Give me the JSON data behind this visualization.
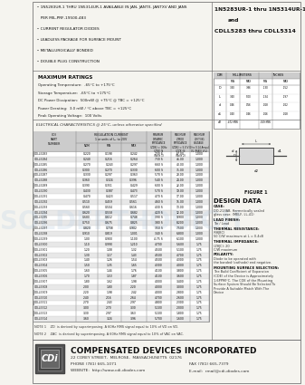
{
  "title_left_lines": [
    "  • 1N5283UR-1 THRU 1N5314UR-1 AVAILABLE IN JAN, JANTX, JANTXV AND JANS",
    "     PER MIL-PRF-19500-483",
    "  • CURRENT REGULATOR DIODES",
    "  • LEADLESS PACKAGE FOR SURFACE MOUNT",
    "  • METALLURGICALLY BONDED",
    "  • DOUBLE PLUG CONSTRUCTION"
  ],
  "title_right_line1": "1N5283UR-1 thru 1N5314UR-1",
  "title_right_line2": "and",
  "title_right_line3": "CDLL5283 thru CDLL5314",
  "max_ratings_title": "MAXIMUM RATINGS",
  "max_ratings": [
    "Operating Temperature:  -65°C to +175°C",
    "Storage Temperature:  -65°C to +175°C",
    "DC Power Dissipation:  500mW @ +75°C @ TBC = +125°C",
    "Power Derating:  3.0 mW / °C above TBC = +125°C",
    "Peak Operating Voltage:  100 Volts"
  ],
  "elec_char_title": "ELECTRICAL CHARACTERISTICS @ 25°C, unless otherwise specified",
  "table_data": [
    [
      "CDLL5283",
      "0.220",
      "0.198",
      "0.242",
      "730 S",
      "67.00",
      "1.000"
    ],
    [
      "CDLL5284",
      "0.240",
      "0.216",
      "0.264",
      "730 S",
      "46.00",
      "1.000"
    ],
    [
      "CDLL5285",
      "0.270",
      "0.243",
      "0.297",
      "660 S",
      "40.00",
      "1.000"
    ],
    [
      "CDLL5286",
      "0.300",
      "0.270",
      "0.330",
      "600 S",
      "35.00",
      "1.000"
    ],
    [
      "CDLL5287",
      "0.330",
      "0.297",
      "0.363",
      "570 S",
      "28.00",
      "1.000"
    ],
    [
      "CDLL5288",
      "0.360",
      "0.324",
      "0.396",
      "540 S",
      "24.00",
      "1.000"
    ],
    [
      "CDLL5289",
      "0.390",
      "0.351",
      "0.429",
      "600 S",
      "22.00",
      "1.000"
    ],
    [
      "CDLL5290",
      "0.430",
      "0.387",
      "0.473",
      "570 S",
      "19.00",
      "1.000"
    ],
    [
      "CDLL5291",
      "0.470",
      "0.423",
      "0.517",
      "470 S",
      "17.00",
      "1.000"
    ],
    [
      "CDLL5292",
      "0.510",
      "0.459",
      "0.561",
      "460 S",
      "15.00",
      "1.000"
    ],
    [
      "CDLL5293",
      "0.560",
      "0.504",
      "0.616",
      "430 S",
      "13.00",
      "1.000"
    ],
    [
      "CDLL5294",
      "0.620",
      "0.558",
      "0.682",
      "420 S",
      "12.00",
      "1.000"
    ],
    [
      "CDLL5295",
      "0.680",
      "0.612",
      "0.748",
      "390 S",
      "9.900",
      "1.000"
    ],
    [
      "CDLL5296",
      "0.750",
      "0.675",
      "0.825",
      "380 S",
      "8.200",
      "1.000"
    ],
    [
      "CDLL5297",
      "0.820",
      "0.738",
      "0.902",
      "350 S",
      "7.500",
      "1.000"
    ],
    [
      "CDLL5298",
      "0.910",
      "0.819",
      "1.001",
      "340 S",
      "6.800",
      "1.000"
    ],
    [
      "CDLL5299",
      "1.00",
      "0.900",
      "1.100",
      "4.75 S",
      "6.100",
      "1.000"
    ],
    [
      "CDLL5300",
      "1.10",
      "0.990",
      "1.210",
      "4.700",
      "5.600",
      "1.75"
    ],
    [
      "CDLL5301",
      "1.20",
      "1.08",
      "1.32",
      "4.500",
      "5.100",
      "1.75"
    ],
    [
      "CDLL5302",
      "1.30",
      "1.17",
      "1.43",
      "4.500",
      "4.700",
      "1.75"
    ],
    [
      "CDLL5303",
      "1.40",
      "1.26",
      "1.54",
      "4.500",
      "4.300",
      "1.75"
    ],
    [
      "CDLL5304",
      "1.50",
      "1.35",
      "1.65",
      "4.300",
      "4.000",
      "1.75"
    ],
    [
      "CDLL5305",
      "1.60",
      "1.44",
      "1.76",
      "4.100",
      "3.800",
      "1.75"
    ],
    [
      "CDLL5306",
      "1.70",
      "1.53",
      "1.87",
      "4.100",
      "3.600",
      "1.75"
    ],
    [
      "CDLL5307",
      "1.80",
      "1.62",
      "1.98",
      "4.000",
      "3.400",
      "1.75"
    ],
    [
      "CDLL5308",
      "2.00",
      "1.80",
      "2.20",
      "4.000",
      "3.000",
      "1.75"
    ],
    [
      "CDLL5309",
      "2.20",
      "1.98",
      "2.42",
      "4.000",
      "2.800",
      "1.75"
    ],
    [
      "CDLL5310",
      "2.40",
      "2.16",
      "2.64",
      "4.700",
      "2.600",
      "1.75"
    ],
    [
      "CDLL5311",
      "2.70",
      "2.43",
      "2.97",
      "4.800",
      "2.300",
      "1.75"
    ],
    [
      "CDLL5312",
      "3.00",
      "2.70",
      "3.30",
      "5.100",
      "2.000",
      "1.75"
    ],
    [
      "CDLL5313",
      "3.30",
      "2.97",
      "3.63",
      "5.100",
      "1.800",
      "1.75"
    ],
    [
      "CDLL5314",
      "3.60",
      "3.24",
      "3.96",
      "5.700",
      "1.600",
      "1.75"
    ]
  ],
  "note1": "NOTE 1    ZD  is derived by superimposing. A 60Hz RMS signal equal to 10% of VD on VD.",
  "note2": "NOTE 2    ZAC  is derived by superimposing. A 60Hz RMS signal equal to 10% of VAC on VAC.",
  "figure_title": "FIGURE 1",
  "design_data_title": "DESIGN DATA",
  "dim_rows": [
    [
      "D",
      "3.30",
      "3.86",
      ".130",
      ".152"
    ],
    [
      "L",
      "3.40",
      "5.00",
      ".134",
      ".197"
    ],
    [
      "d",
      "0.46",
      "0.56",
      ".018",
      ".022"
    ],
    [
      "d1",
      "0.40",
      "0.46",
      ".016",
      ".018"
    ],
    [
      "d2",
      ".472 MIN",
      "",
      ".019 MIN",
      ""
    ]
  ],
  "company_name": "COMPENSATED DEVICES INCORPORATED",
  "company_address": "22 COREY STREET,  MELROSE,  MASSACHUSETTS  02176",
  "company_phone": "PHONE (781) 665-1071",
  "company_fax": "FAX (781) 665-7379",
  "company_website": "WEBSITE:  http://www.cdi-diodes.com",
  "company_email": "E-mail:  rmail@cdi-diodes.com",
  "bg_color": "#f5f4ef",
  "border_color": "#777777",
  "header_bg": "#cccccc",
  "row_alt_bg": "#e8e8e8",
  "white": "#ffffff"
}
